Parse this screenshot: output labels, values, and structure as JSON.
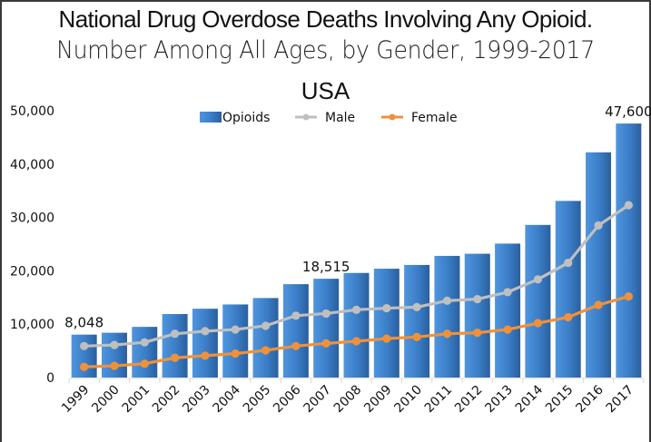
{
  "chart_data": {
    "type": "bar",
    "title": "National Drug Overdose Deaths Involving Any Opioid.",
    "subtitle": "Number Among All Ages, by Gender, 1999-2017",
    "region_label": "USA",
    "xlabel": "",
    "ylabel": "",
    "ylim": [
      0,
      50000
    ],
    "y_ticks": [
      "0",
      "10,000",
      "20,000",
      "30,000",
      "40,000",
      "50,000"
    ],
    "y_tick_values": [
      0,
      10000,
      20000,
      30000,
      40000,
      50000
    ],
    "grid": false,
    "legend_position": "top-center",
    "categories": [
      "1999",
      "2000",
      "2001",
      "2002",
      "2003",
      "2004",
      "2005",
      "2006",
      "2007",
      "2008",
      "2009",
      "2010",
      "2011",
      "2012",
      "2013",
      "2014",
      "2015",
      "2016",
      "2017"
    ],
    "series": [
      {
        "name": "Opioids",
        "type": "bar",
        "color": "#3b7ec8",
        "values": [
          8048,
          8400,
          9500,
          11900,
          12900,
          13700,
          14900,
          17500,
          18515,
          19600,
          20400,
          21100,
          22800,
          23200,
          25100,
          28600,
          33100,
          42200,
          47600
        ]
      },
      {
        "name": "Male",
        "type": "line",
        "color": "#bfbfbf",
        "values": [
          5900,
          6100,
          6600,
          8200,
          8700,
          9000,
          9700,
          11600,
          12000,
          12700,
          13000,
          13200,
          14400,
          14700,
          16000,
          18400,
          21500,
          28500,
          32300
        ]
      },
      {
        "name": "Female",
        "type": "line",
        "color": "#f0913a",
        "values": [
          2000,
          2200,
          2600,
          3700,
          4100,
          4500,
          5100,
          5900,
          6400,
          6800,
          7300,
          7600,
          8200,
          8400,
          9000,
          10200,
          11300,
          13600,
          15200
        ]
      }
    ],
    "data_labels": [
      {
        "category": "1999",
        "series": "Opioids",
        "text": "8,048"
      },
      {
        "category": "2007",
        "series": "Opioids",
        "text": "18,515"
      },
      {
        "category": "2017",
        "series": "Opioids",
        "text": "47,600"
      }
    ]
  }
}
